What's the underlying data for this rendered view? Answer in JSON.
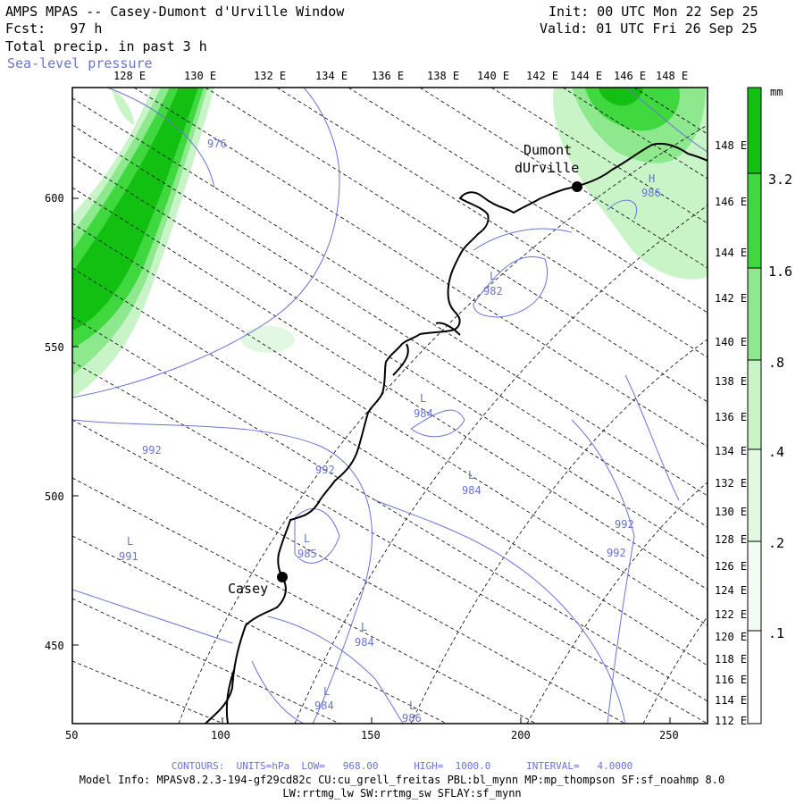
{
  "header": {
    "title": "AMPS MPAS -- Casey-Dumont d'Urville Window",
    "forecast_label": "Fcst:   97 h",
    "init": "Init: 00 UTC Mon 22 Sep 25",
    "valid": "Valid: 01 UTC Fri 26 Sep 25",
    "field": "Total precip. in past 3 h",
    "contour_field": "Sea-level pressure"
  },
  "colors": {
    "precip_dark": "#11c011",
    "precip_mid": "#3fd83f",
    "precip_light": "#8ee88e",
    "precip_pale": "#c8f4c8",
    "contour": "#6b73d6",
    "coast": "#000000"
  },
  "top_lon_labels": [
    "128 E",
    "130 E",
    "132 E",
    "134 E",
    "136 E",
    "138 E",
    "140 E",
    "142 E",
    "144 E",
    "146 E",
    "148 E"
  ],
  "right_lat_labels": [
    "148 E",
    "146 E",
    "144 E",
    "142 E",
    "140 E",
    "138 E",
    "136 E",
    "134 E",
    "132 E",
    "130 E",
    "128 E",
    "126 E",
    "124 E",
    "122 E",
    "120 E",
    "118 E",
    "116 E",
    "114 E",
    "112 E"
  ],
  "x_axis_labels": [
    "50",
    "100",
    "150",
    "200",
    "250"
  ],
  "y_axis_labels": [
    "600",
    "550",
    "500",
    "450"
  ],
  "colorbar": {
    "unit": "mm",
    "labels": [
      "3.2",
      "1.6",
      ".8",
      ".4",
      ".2",
      ".1"
    ]
  },
  "stations": {
    "dumont_line1": "Dumont",
    "dumont_line2": "dUrville",
    "casey": "Casey"
  },
  "pressure_labels": [
    {
      "text": "976"
    },
    {
      "text": "L",
      "value": "982"
    },
    {
      "text": "L",
      "value": "984"
    },
    {
      "text": "L",
      "value": "984"
    },
    {
      "text": "L",
      "value": "985"
    },
    {
      "text": "L",
      "value": "984"
    },
    {
      "text": "L",
      "value": "984"
    },
    {
      "text": "L",
      "value": "986"
    },
    {
      "text": "L",
      "value": "991"
    },
    {
      "text": "992"
    },
    {
      "text": "992"
    },
    {
      "text": "992"
    },
    {
      "text": "992"
    },
    {
      "text": "H",
      "value": "986"
    }
  ],
  "footer": {
    "contours": "CONTOURS:  UNITS=hPa  LOW=   968.00      HIGH=  1000.0      INTERVAL=   4.0000",
    "model_info": "Model Info: MPASv8.2.3-194-gf29cd82c CU:cu_grell_freitas PBL:bl_mynn MP:mp_thompson SF:sf_noahmp 8.0",
    "model_info2": "LW:rrtmg_lw SW:rrtmg_sw SFLAY:sf_mynn"
  }
}
